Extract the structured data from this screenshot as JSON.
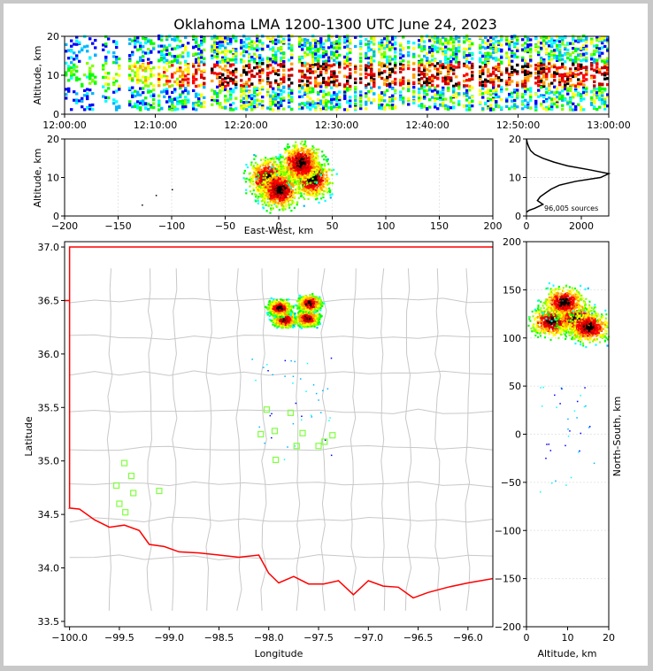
{
  "title": "Oklahoma LMA 1200-1300 UTC June 24, 2023",
  "colors": {
    "state_border": "#ff0000",
    "county_lines": "#c8c8c8",
    "stations": "#80ff40",
    "axis": "#000000"
  },
  "chart_data": [
    {
      "id": "time-height",
      "type": "heatmap",
      "ylabel": "Altitude, km",
      "ylim": [
        0,
        20
      ],
      "y_ticks": [
        "0",
        "10",
        "20"
      ],
      "x_ticks": [
        "12:00:00",
        "12:10:00",
        "12:20:00",
        "12:30:00",
        "12:40:00",
        "12:50:00",
        "13:00:00"
      ],
      "xlim": [
        "12:00:00",
        "13:00:00"
      ]
    },
    {
      "id": "east-west-altitude",
      "type": "heatmap",
      "xlabel": "East-West, km",
      "ylabel": "Altitude, km",
      "xlim": [
        -200,
        200
      ],
      "ylim": [
        0,
        20
      ],
      "x_ticks": [
        "−200",
        "−150",
        "−100",
        "−50",
        "0",
        "50",
        "100",
        "150",
        "200"
      ],
      "y_ticks": [
        "0",
        "10",
        "20"
      ],
      "cells": [
        [
          -10,
          10
        ],
        [
          30,
          10
        ],
        [
          0,
          7
        ],
        [
          20,
          14
        ]
      ]
    },
    {
      "id": "altitude-histogram",
      "type": "line",
      "xlim": [
        0,
        3000
      ],
      "ylim": [
        0,
        20
      ],
      "x_ticks": [
        "0",
        "2000"
      ],
      "y_ticks": [
        "0",
        "10",
        "20"
      ],
      "annotation": "96,005 sources",
      "x": [
        0,
        30,
        80,
        150,
        300,
        600,
        1000,
        1500,
        2300,
        3000,
        2700,
        1800,
        1200,
        900,
        700,
        500,
        400,
        600,
        300,
        100,
        0
      ],
      "y": [
        20,
        19,
        18,
        17,
        16,
        15,
        14,
        13,
        12,
        11,
        10,
        9,
        8,
        7,
        6,
        5,
        4,
        3,
        2,
        1.5,
        1
      ]
    },
    {
      "id": "plan-view",
      "type": "scatter",
      "xlabel": "Longitude",
      "ylabel": "Latitude",
      "xlim": [
        -100.05,
        -95.75
      ],
      "ylim": [
        33.45,
        37.05
      ],
      "x_ticks": [
        "−100.0",
        "−99.5",
        "−99.0",
        "−98.5",
        "−98.0",
        "−97.5",
        "−97.0",
        "−96.5",
        "−96.0"
      ],
      "y_ticks": [
        "33.5",
        "34.0",
        "34.5",
        "35.0",
        "35.5",
        "36.0",
        "36.5",
        "37.0"
      ],
      "stations": [
        [
          -99.45,
          34.98
        ],
        [
          -99.38,
          34.86
        ],
        [
          -99.53,
          34.77
        ],
        [
          -99.36,
          34.7
        ],
        [
          -99.5,
          34.6
        ],
        [
          -99.44,
          34.52
        ],
        [
          -99.1,
          34.72
        ],
        [
          -98.02,
          35.48
        ],
        [
          -98.08,
          35.25
        ],
        [
          -97.94,
          35.28
        ],
        [
          -97.78,
          35.45
        ],
        [
          -97.72,
          35.14
        ],
        [
          -97.66,
          35.26
        ],
        [
          -97.93,
          35.01
        ],
        [
          -97.5,
          35.14
        ],
        [
          -97.44,
          35.18
        ],
        [
          -97.36,
          35.24
        ]
      ],
      "storm_cells": [
        [
          -97.85,
          36.33
        ],
        [
          -97.62,
          36.34
        ],
        [
          -97.6,
          36.48
        ],
        [
          -97.9,
          36.44
        ]
      ]
    },
    {
      "id": "north-south-altitude",
      "type": "heatmap",
      "xlabel": "Altitude, km",
      "ylabel": "North-South, km",
      "xlim": [
        0,
        20
      ],
      "ylim": [
        -200,
        200
      ],
      "x_ticks": [
        "0",
        "10",
        "20"
      ],
      "y_ticks": [
        "−200",
        "−150",
        "−100",
        "−50",
        "0",
        "50",
        "100",
        "150",
        "200"
      ]
    }
  ]
}
